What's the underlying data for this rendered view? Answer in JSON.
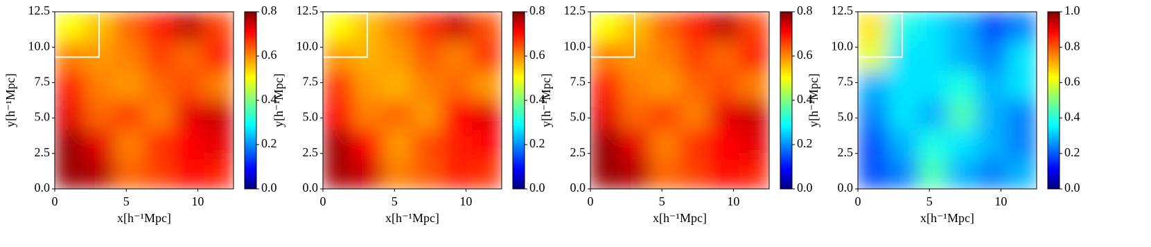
{
  "chart_data": [
    {
      "type": "heatmap",
      "xlabel": "x[h⁻¹Mpc]",
      "ylabel": "y[h⁻¹Mpc]",
      "colormap": "jet",
      "xlim": [
        0,
        12.5
      ],
      "ylim": [
        0,
        12.5
      ],
      "xticks": [
        0,
        5,
        10
      ],
      "yticks": [
        {
          "value": 0,
          "label": "0.0"
        },
        {
          "value": 2.5,
          "label": "2.5"
        },
        {
          "value": 5,
          "label": "5.0"
        },
        {
          "value": 7.5,
          "label": "7.5"
        },
        {
          "value": 10,
          "label": "10.0"
        },
        {
          "value": 12.5,
          "label": "12.5"
        }
      ],
      "clim": [
        0,
        0.8
      ],
      "cticks": [
        {
          "value": 0,
          "label": "0.0"
        },
        {
          "value": 0.2,
          "label": "0.2"
        },
        {
          "value": 0.4,
          "label": "0.4"
        },
        {
          "value": 0.6,
          "label": "0.6"
        },
        {
          "value": 0.8,
          "label": "0.8"
        }
      ],
      "box": {
        "x": [
          0,
          3.1
        ],
        "y": [
          9.3,
          12.4
        ]
      },
      "z": [
        [
          0.5,
          0.55,
          0.62,
          0.68,
          0.75,
          0.65
        ],
        [
          0.6,
          0.58,
          0.6,
          0.65,
          0.62,
          0.68
        ],
        [
          0.68,
          0.6,
          0.58,
          0.62,
          0.64,
          0.6
        ],
        [
          0.72,
          0.62,
          0.65,
          0.6,
          0.72,
          0.74
        ],
        [
          0.78,
          0.72,
          0.6,
          0.66,
          0.7,
          0.72
        ],
        [
          0.78,
          0.76,
          0.62,
          0.65,
          0.7,
          0.68
        ]
      ]
    },
    {
      "type": "heatmap",
      "xlabel": "x[h⁻¹Mpc]",
      "ylabel": "y[h⁻¹Mpc]",
      "colormap": "jet",
      "xlim": [
        0,
        12.5
      ],
      "ylim": [
        0,
        12.5
      ],
      "xticks": [
        0,
        5,
        10
      ],
      "yticks": [
        {
          "value": 0,
          "label": "0.0"
        },
        {
          "value": 2.5,
          "label": "2.5"
        },
        {
          "value": 5,
          "label": "5.0"
        },
        {
          "value": 7.5,
          "label": "7.5"
        },
        {
          "value": 10,
          "label": "10.0"
        },
        {
          "value": 12.5,
          "label": "12.5"
        }
      ],
      "clim": [
        0,
        0.8
      ],
      "cticks": [
        {
          "value": 0,
          "label": "0.0"
        },
        {
          "value": 0.2,
          "label": "0.2"
        },
        {
          "value": 0.4,
          "label": "0.4"
        },
        {
          "value": 0.6,
          "label": "0.6"
        },
        {
          "value": 0.8,
          "label": "0.8"
        }
      ],
      "box": {
        "x": [
          0,
          3.1
        ],
        "y": [
          9.3,
          12.4
        ]
      },
      "z": [
        [
          0.5,
          0.55,
          0.6,
          0.66,
          0.74,
          0.64
        ],
        [
          0.58,
          0.56,
          0.58,
          0.63,
          0.6,
          0.66
        ],
        [
          0.66,
          0.58,
          0.56,
          0.6,
          0.62,
          0.58
        ],
        [
          0.7,
          0.6,
          0.62,
          0.58,
          0.7,
          0.72
        ],
        [
          0.77,
          0.7,
          0.58,
          0.64,
          0.68,
          0.7
        ],
        [
          0.77,
          0.74,
          0.6,
          0.63,
          0.68,
          0.66
        ]
      ]
    },
    {
      "type": "heatmap",
      "xlabel": "x[h⁻¹Mpc]",
      "ylabel": "y[h⁻¹Mpc]",
      "colormap": "jet",
      "xlim": [
        0,
        12.5
      ],
      "ylim": [
        0,
        12.5
      ],
      "xticks": [
        0,
        5,
        10
      ],
      "yticks": [
        {
          "value": 0,
          "label": "0.0"
        },
        {
          "value": 2.5,
          "label": "2.5"
        },
        {
          "value": 5,
          "label": "5.0"
        },
        {
          "value": 7.5,
          "label": "7.5"
        },
        {
          "value": 10,
          "label": "10.0"
        },
        {
          "value": 12.5,
          "label": "12.5"
        }
      ],
      "clim": [
        0,
        0.8
      ],
      "cticks": [
        {
          "value": 0,
          "label": "0.0"
        },
        {
          "value": 0.2,
          "label": "0.2"
        },
        {
          "value": 0.4,
          "label": "0.4"
        },
        {
          "value": 0.6,
          "label": "0.6"
        },
        {
          "value": 0.8,
          "label": "0.8"
        }
      ],
      "box": {
        "x": [
          0,
          3.1
        ],
        "y": [
          9.3,
          12.4
        ]
      },
      "z": [
        [
          0.5,
          0.55,
          0.62,
          0.68,
          0.75,
          0.65
        ],
        [
          0.6,
          0.58,
          0.6,
          0.65,
          0.62,
          0.68
        ],
        [
          0.68,
          0.6,
          0.58,
          0.62,
          0.64,
          0.6
        ],
        [
          0.72,
          0.62,
          0.65,
          0.6,
          0.72,
          0.74
        ],
        [
          0.78,
          0.72,
          0.6,
          0.66,
          0.7,
          0.72
        ],
        [
          0.78,
          0.76,
          0.62,
          0.65,
          0.7,
          0.68
        ]
      ]
    },
    {
      "type": "heatmap",
      "xlabel": "x[h⁻¹Mpc]",
      "ylabel": "y[h⁻¹Mpc]",
      "colormap": "jet",
      "xlim": [
        0,
        12.5
      ],
      "ylim": [
        0,
        12.5
      ],
      "xticks": [
        0,
        5,
        10
      ],
      "yticks": [
        {
          "value": 0,
          "label": "0.0"
        },
        {
          "value": 2.5,
          "label": "2.5"
        },
        {
          "value": 5,
          "label": "5.0"
        },
        {
          "value": 7.5,
          "label": "7.5"
        },
        {
          "value": 10,
          "label": "10.0"
        },
        {
          "value": 12.5,
          "label": "12.5"
        }
      ],
      "clim": [
        0,
        1
      ],
      "cticks": [
        {
          "value": 0,
          "label": "0.0"
        },
        {
          "value": 0.2,
          "label": "0.2"
        },
        {
          "value": 0.4,
          "label": "0.4"
        },
        {
          "value": 0.6,
          "label": "0.6"
        },
        {
          "value": 0.8,
          "label": "0.8"
        },
        {
          "value": 1,
          "label": "1.0"
        }
      ],
      "box": {
        "x": [
          0,
          3.1
        ],
        "y": [
          9.3,
          12.4
        ]
      },
      "z": [
        [
          0.65,
          0.4,
          0.35,
          0.3,
          0.2,
          0.25
        ],
        [
          0.6,
          0.35,
          0.35,
          0.3,
          0.25,
          0.35
        ],
        [
          0.3,
          0.35,
          0.35,
          0.4,
          0.3,
          0.35
        ],
        [
          0.25,
          0.35,
          0.3,
          0.45,
          0.3,
          0.25
        ],
        [
          0.2,
          0.3,
          0.4,
          0.35,
          0.3,
          0.25
        ],
        [
          0.2,
          0.25,
          0.45,
          0.3,
          0.25,
          0.3
        ]
      ]
    }
  ]
}
